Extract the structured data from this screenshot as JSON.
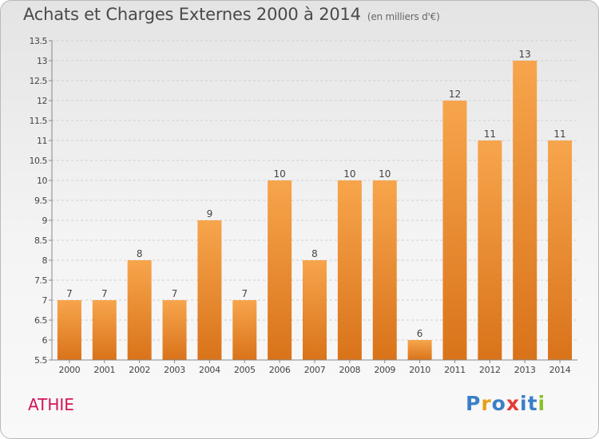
{
  "header": {
    "title": "Achats et Charges Externes 2000 à 2014",
    "subtitle": "(en milliers d'€)"
  },
  "footer": {
    "commune": "ATHIE",
    "logo_text": "Proxiti"
  },
  "colors": {
    "bar_light": "#f7a54c",
    "bar_dark": "#d9731a",
    "commune": "#d4145a",
    "logo": [
      "#3a7fc8",
      "#e8a01a",
      "#3a7fc8",
      "#e53935",
      "#3a7fc8",
      "#3a7fc8",
      "#8bbf2a"
    ]
  },
  "chart_data": {
    "type": "bar",
    "categories": [
      "2000",
      "2001",
      "2002",
      "2003",
      "2004",
      "2005",
      "2006",
      "2007",
      "2008",
      "2009",
      "2010",
      "2011",
      "2012",
      "2013",
      "2014"
    ],
    "values": [
      7,
      7,
      8,
      7,
      9,
      7,
      10,
      8,
      10,
      10,
      6,
      12,
      11,
      13,
      11
    ],
    "value_labels": [
      "7",
      "7",
      "8",
      "7",
      "9",
      "7",
      "10",
      "8",
      "10",
      "10",
      "6",
      "12",
      "11",
      "13",
      "11"
    ],
    "yticks": [
      5.5,
      6,
      6.5,
      7,
      7.5,
      8,
      8.5,
      9,
      9.5,
      10,
      10.5,
      11,
      11.5,
      12,
      12.5,
      13,
      13.5
    ],
    "ytick_labels": [
      "5.5",
      "6",
      "6.5",
      "7",
      "7.5",
      "8",
      "8.5",
      "9",
      "9.5",
      "10",
      "10.5",
      "11",
      "11.5",
      "12",
      "12.5",
      "13",
      "13.5"
    ],
    "ylim": [
      5.5,
      13.5
    ],
    "grid": "horizontal dashed",
    "legend": "none"
  }
}
